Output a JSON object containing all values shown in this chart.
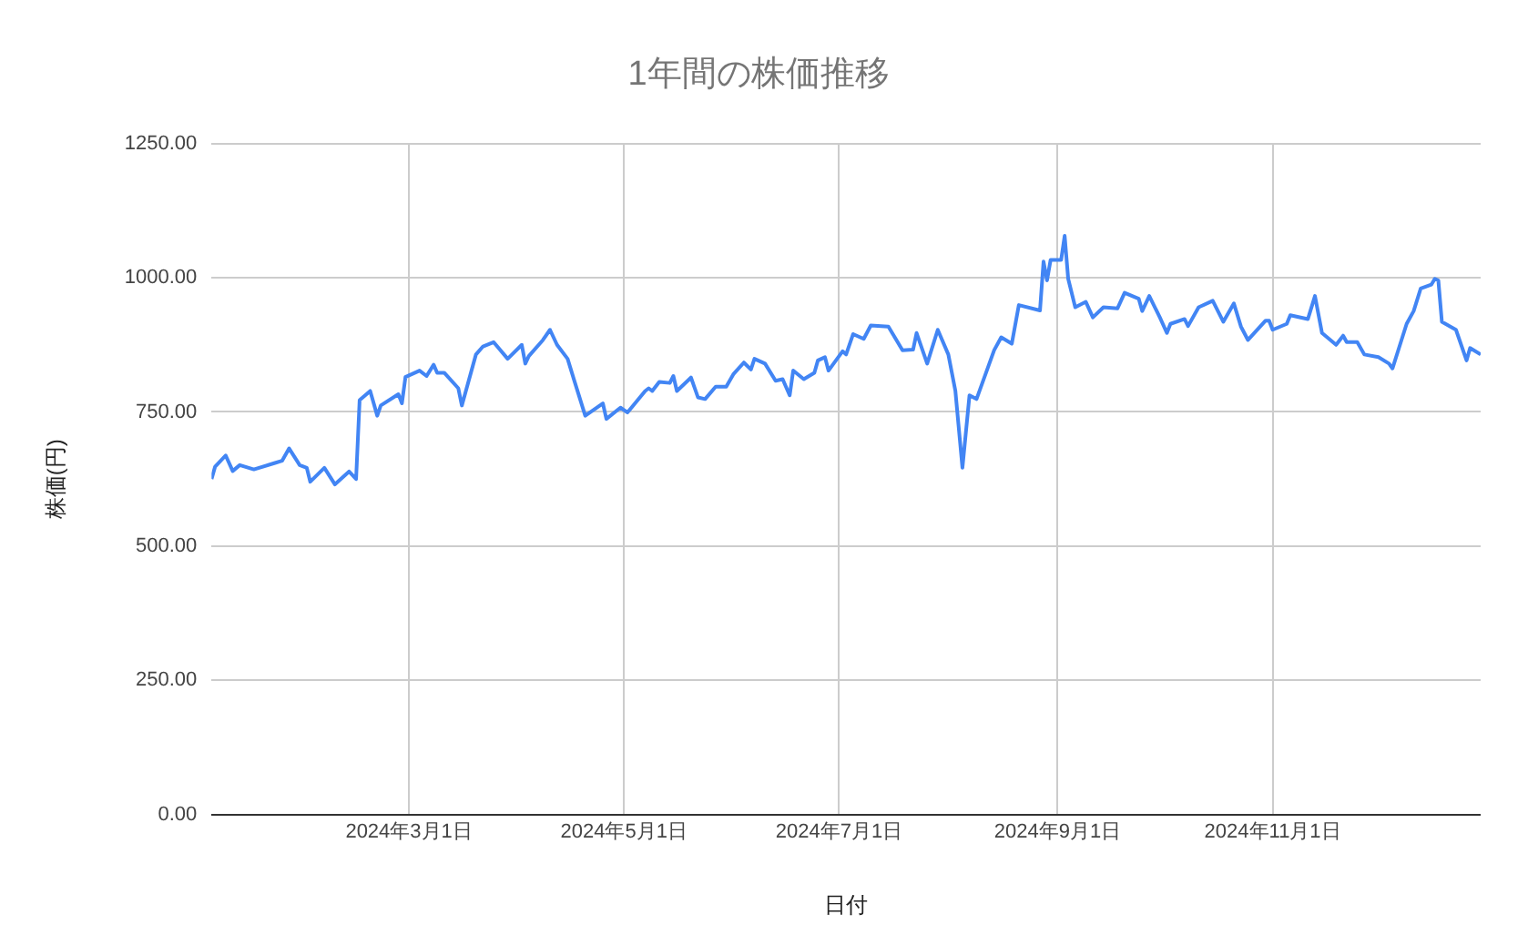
{
  "chart_data": {
    "type": "line",
    "title": "1年間の株価推移",
    "xlabel": "日付",
    "ylabel": "株価(円)",
    "x": [
      "2024-01-05",
      "2024-01-06",
      "2024-01-09",
      "2024-01-11",
      "2024-01-13",
      "2024-01-17",
      "2024-01-23",
      "2024-01-25",
      "2024-01-27",
      "2024-01-30",
      "2024-02-01",
      "2024-02-02",
      "2024-02-06",
      "2024-02-09",
      "2024-02-13",
      "2024-02-15",
      "2024-02-16",
      "2024-02-19",
      "2024-02-21",
      "2024-02-22",
      "2024-02-27",
      "2024-02-28",
      "2024-02-29",
      "2024-03-04",
      "2024-03-06",
      "2024-03-08",
      "2024-03-09",
      "2024-03-11",
      "2024-03-15",
      "2024-03-16",
      "2024-03-20",
      "2024-03-22",
      "2024-03-25",
      "2024-03-29",
      "2024-04-02",
      "2024-04-03",
      "2024-04-04",
      "2024-04-08",
      "2024-04-10",
      "2024-04-12",
      "2024-04-15",
      "2024-04-17",
      "2024-04-20",
      "2024-04-25",
      "2024-04-26",
      "2024-04-30",
      "2024-05-02",
      "2024-05-07",
      "2024-05-08",
      "2024-05-09",
      "2024-05-11",
      "2024-05-14",
      "2024-05-15",
      "2024-05-16",
      "2024-05-20",
      "2024-05-22",
      "2024-05-24",
      "2024-05-27",
      "2024-05-30",
      "2024-06-01",
      "2024-06-04",
      "2024-06-06",
      "2024-06-07",
      "2024-06-10",
      "2024-06-13",
      "2024-06-15",
      "2024-06-17",
      "2024-06-18",
      "2024-06-21",
      "2024-06-24",
      "2024-06-25",
      "2024-06-27",
      "2024-06-28",
      "2024-07-02",
      "2024-07-03",
      "2024-07-05",
      "2024-07-08",
      "2024-07-10",
      "2024-07-15",
      "2024-07-19",
      "2024-07-22",
      "2024-07-23",
      "2024-07-26",
      "2024-07-29",
      "2024-08-01",
      "2024-08-03",
      "2024-08-05",
      "2024-08-07",
      "2024-08-09",
      "2024-08-14",
      "2024-08-16",
      "2024-08-19",
      "2024-08-21",
      "2024-08-27",
      "2024-08-28",
      "2024-08-29",
      "2024-08-30",
      "2024-09-02",
      "2024-09-03",
      "2024-09-04",
      "2024-09-06",
      "2024-09-09",
      "2024-09-11",
      "2024-09-14",
      "2024-09-18",
      "2024-09-20",
      "2024-09-24",
      "2024-09-25",
      "2024-09-27",
      "2024-09-30",
      "2024-10-02",
      "2024-10-03",
      "2024-10-07",
      "2024-10-08",
      "2024-10-11",
      "2024-10-15",
      "2024-10-18",
      "2024-10-21",
      "2024-10-23",
      "2024-10-25",
      "2024-10-30",
      "2024-10-31",
      "2024-11-01",
      "2024-11-05",
      "2024-11-06",
      "2024-11-11",
      "2024-11-13",
      "2024-11-15",
      "2024-11-19",
      "2024-11-21",
      "2024-11-22",
      "2024-11-25",
      "2024-11-27",
      "2024-12-01",
      "2024-12-04",
      "2024-12-05",
      "2024-12-09",
      "2024-12-11",
      "2024-12-13",
      "2024-12-16",
      "2024-12-17",
      "2024-12-18",
      "2024-12-19",
      "2024-12-23",
      "2024-12-26",
      "2024-12-27",
      "2024-12-30"
    ],
    "series": [
      {
        "color": "#4285f4",
        "values": [
          625,
          648,
          669,
          640,
          651,
          643,
          655,
          659,
          682,
          651,
          646,
          620,
          646,
          615,
          639,
          625,
          772,
          789,
          743,
          762,
          783,
          766,
          815,
          827,
          817,
          838,
          823,
          823,
          794,
          762,
          857,
          872,
          880,
          849,
          875,
          840,
          854,
          884,
          903,
          875,
          849,
          806,
          743,
          766,
          737,
          758,
          749,
          789,
          794,
          789,
          806,
          804,
          817,
          789,
          814,
          777,
          774,
          797,
          797,
          820,
          842,
          829,
          849,
          840,
          808,
          811,
          781,
          827,
          811,
          823,
          846,
          852,
          827,
          863,
          857,
          895,
          886,
          911,
          909,
          865,
          866,
          897,
          840,
          903,
          857,
          789,
          646,
          781,
          774,
          865,
          889,
          877,
          949,
          939,
          1030,
          995,
          1033,
          1033,
          1078,
          998,
          945,
          955,
          926,
          945,
          943,
          972,
          961,
          938,
          966,
          926,
          897,
          914,
          923,
          910,
          945,
          957,
          918,
          952,
          909,
          884,
          920,
          920,
          903,
          914,
          930,
          923,
          966,
          897,
          875,
          892,
          880,
          880,
          857,
          852,
          840,
          831,
          914,
          938,
          980,
          987,
          998,
          995,
          918,
          903,
          846,
          869,
          857
        ]
      }
    ],
    "xlim": [
      "2024-01-05",
      "2024-12-30"
    ],
    "xticks": [
      {
        "value": "2024-03-01",
        "label": "2024年3月1日"
      },
      {
        "value": "2024-05-01",
        "label": "2024年5月1日"
      },
      {
        "value": "2024-07-01",
        "label": "2024年7月1日"
      },
      {
        "value": "2024-09-01",
        "label": "2024年9月1日"
      },
      {
        "value": "2024-11-01",
        "label": "2024年11月1日"
      }
    ],
    "ylim": [
      0,
      1250
    ],
    "yticks": [
      {
        "value": 0,
        "label": "0.00"
      },
      {
        "value": 250,
        "label": "250.00"
      },
      {
        "value": 500,
        "label": "500.00"
      },
      {
        "value": 750,
        "label": "750.00"
      },
      {
        "value": 1000,
        "label": "1000.00"
      },
      {
        "value": 1250,
        "label": "1250.00"
      }
    ],
    "grid": true,
    "legend": false,
    "marker": "none",
    "line_style": "solid"
  }
}
